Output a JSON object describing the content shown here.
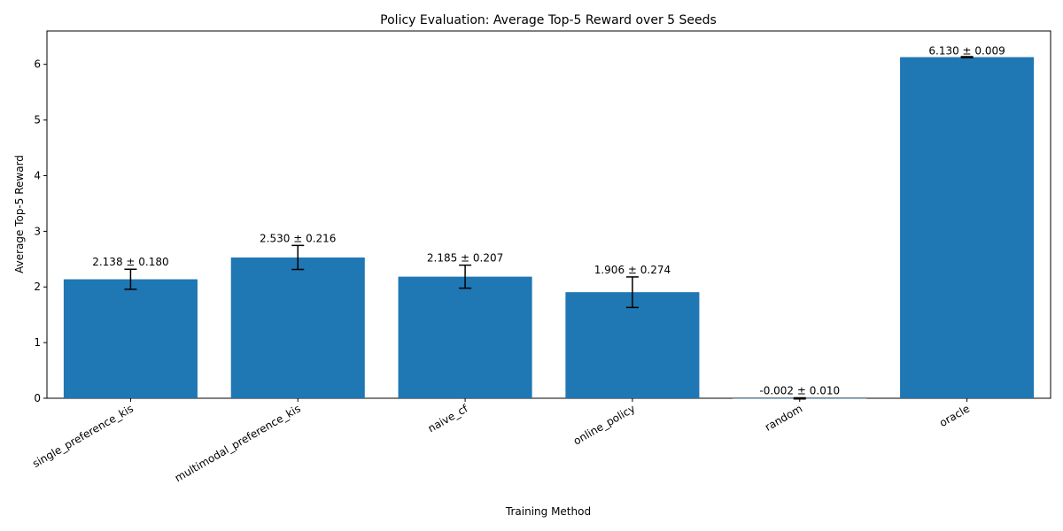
{
  "chart_data": {
    "type": "bar",
    "title": "Policy Evaluation: Average Top-5 Reward over 5 Seeds",
    "xlabel": "Training Method",
    "ylabel": "Average Top-5 Reward",
    "categories": [
      "single_preference_kis",
      "multimodal_preference_kis",
      "naive_cf",
      "online_policy",
      "random",
      "oracle"
    ],
    "values": [
      2.138,
      2.53,
      2.185,
      1.906,
      -0.002,
      6.13
    ],
    "errors": [
      0.18,
      0.216,
      0.207,
      0.274,
      0.01,
      0.009
    ],
    "value_labels": [
      "2.138 ± 0.180",
      "2.530 ± 0.216",
      "2.185 ± 0.207",
      "1.906 ± 0.274",
      "-0.002 ± 0.010",
      "6.130 ± 0.009"
    ],
    "ylim": [
      0,
      6.6
    ],
    "yticks": [
      "0",
      "1",
      "2",
      "3",
      "4",
      "5",
      "6"
    ],
    "grid": false,
    "colors": {
      "bar": "#1f77b4",
      "error": "#000000"
    }
  }
}
